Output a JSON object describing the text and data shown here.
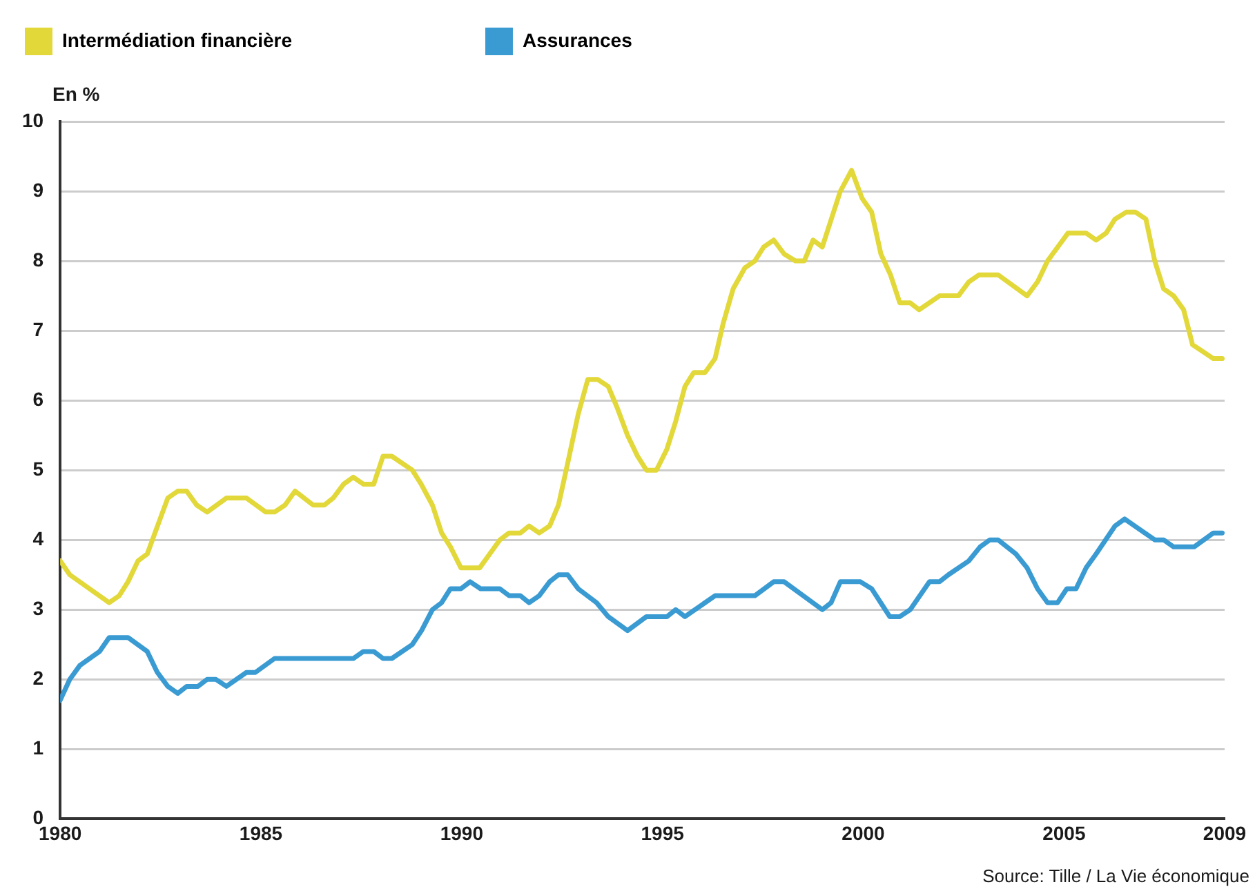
{
  "chart_data": {
    "type": "line",
    "ylabel": "En %",
    "xlim": [
      1980,
      2009
    ],
    "xticks": [
      1980,
      1985,
      1990,
      1995,
      2000,
      2005,
      2009
    ],
    "ylim": [
      0,
      10
    ],
    "yticks": [
      0,
      1,
      2,
      3,
      4,
      5,
      6,
      7,
      8,
      9,
      10
    ],
    "grid": "y",
    "legend": "top left",
    "marker": "none",
    "line_style": "solid",
    "annotations": [
      "Source: Tille / La Vie économique"
    ],
    "series": [
      {
        "name": "Intermédiation financière",
        "color": "#e2d83a",
        "x": [
          1980.0,
          1980.24,
          1981.22,
          1981.47,
          1981.69,
          1981.94,
          1982.17,
          1982.68,
          1982.93,
          1983.15,
          1983.4,
          1983.66,
          1984.14,
          1984.64,
          1985.12,
          1985.34,
          1985.6,
          1985.85,
          1986.3,
          1986.58,
          1986.8,
          1987.06,
          1987.3,
          1987.55,
          1987.81,
          1988.04,
          1988.26,
          1988.77,
          1988.99,
          1989.27,
          1989.5,
          1989.72,
          1989.98,
          1990.45,
          1990.95,
          1991.18,
          1991.46,
          1991.68,
          1991.93,
          1992.19,
          1992.41,
          1992.64,
          1992.9,
          1993.14,
          1993.39,
          1993.65,
          1993.87,
          1994.13,
          1994.38,
          1994.6,
          1994.85,
          1995.11,
          1995.33,
          1995.56,
          1995.78,
          1996.06,
          1996.31,
          1996.51,
          1996.76,
          1997.05,
          1997.3,
          1997.52,
          1997.77,
          1998.03,
          1998.31,
          1998.53,
          1998.75,
          1998.98,
          1999.43,
          1999.71,
          1999.97,
          2000.21,
          2000.44,
          2000.68,
          2000.91,
          2001.17,
          2001.39,
          2001.9,
          2002.37,
          2002.63,
          2002.88,
          2003.36,
          2004.08,
          2004.34,
          2004.59,
          2005.1,
          2005.55,
          2005.8,
          2006.05,
          2006.27,
          2006.55,
          2006.78,
          2007.04,
          2007.26,
          2007.48,
          2007.73,
          2007.98,
          2008.2,
          2008.72,
          2008.94
        ],
        "values": [
          3.7,
          3.5,
          3.1,
          3.2,
          3.4,
          3.7,
          3.8,
          4.6,
          4.7,
          4.7,
          4.5,
          4.4,
          4.6,
          4.6,
          4.4,
          4.4,
          4.5,
          4.7,
          4.5,
          4.5,
          4.6,
          4.8,
          4.9,
          4.8,
          4.8,
          5.2,
          5.2,
          5.0,
          4.8,
          4.5,
          4.1,
          3.9,
          3.6,
          3.6,
          4.0,
          4.1,
          4.1,
          4.2,
          4.1,
          4.2,
          4.5,
          5.1,
          5.8,
          6.3,
          6.3,
          6.2,
          5.9,
          5.5,
          5.2,
          5.0,
          5.0,
          5.3,
          5.7,
          6.2,
          6.4,
          6.4,
          6.6,
          7.1,
          7.6,
          7.9,
          8.0,
          8.2,
          8.3,
          8.1,
          8.0,
          8.0,
          8.3,
          8.2,
          9.0,
          9.3,
          8.9,
          8.7,
          8.1,
          7.8,
          7.4,
          7.4,
          7.3,
          7.5,
          7.5,
          7.7,
          7.8,
          7.8,
          7.5,
          7.7,
          8.0,
          8.4,
          8.4,
          8.3,
          8.4,
          8.6,
          8.7,
          8.7,
          8.6,
          8.0,
          7.6,
          7.5,
          7.3,
          6.8,
          6.6,
          6.6
        ]
      },
      {
        "name": "Assurances",
        "color": "#3a9bd3",
        "x": [
          1980.0,
          1980.24,
          1980.49,
          1980.98,
          1981.22,
          1981.69,
          1982.17,
          1982.42,
          1982.68,
          1982.93,
          1983.15,
          1983.43,
          1983.66,
          1983.88,
          1984.14,
          1984.64,
          1984.86,
          1985.34,
          1987.3,
          1987.55,
          1987.81,
          1988.04,
          1988.26,
          1988.77,
          1989.0,
          1989.27,
          1989.5,
          1989.72,
          1989.98,
          1990.21,
          1990.47,
          1990.95,
          1991.18,
          1991.46,
          1991.68,
          1991.93,
          1992.19,
          1992.41,
          1992.64,
          1992.9,
          1993.36,
          1993.65,
          1994.13,
          1994.6,
          1995.11,
          1995.33,
          1995.56,
          1996.31,
          1997.3,
          1997.77,
          1998.03,
          1998.98,
          1999.2,
          1999.43,
          1999.93,
          2000.21,
          2000.66,
          2000.91,
          2001.17,
          2001.65,
          2001.9,
          2002.12,
          2002.63,
          2002.91,
          2003.15,
          2003.36,
          2003.8,
          2004.08,
          2004.34,
          2004.59,
          2004.84,
          2005.07,
          2005.3,
          2005.55,
          2005.8,
          2006.27,
          2006.51,
          2007.26,
          2007.48,
          2007.73,
          2008.24,
          2008.72,
          2008.94
        ],
        "values": [
          1.7,
          2.0,
          2.2,
          2.4,
          2.6,
          2.6,
          2.4,
          2.1,
          1.9,
          1.8,
          1.9,
          1.9,
          2.0,
          2.0,
          1.9,
          2.1,
          2.1,
          2.3,
          2.3,
          2.4,
          2.4,
          2.3,
          2.3,
          2.5,
          2.7,
          3.0,
          3.1,
          3.3,
          3.3,
          3.4,
          3.3,
          3.3,
          3.2,
          3.2,
          3.1,
          3.2,
          3.4,
          3.5,
          3.5,
          3.3,
          3.1,
          2.9,
          2.7,
          2.9,
          2.9,
          3.0,
          2.9,
          3.2,
          3.2,
          3.4,
          3.4,
          3.0,
          3.1,
          3.4,
          3.4,
          3.3,
          2.9,
          2.9,
          3.0,
          3.4,
          3.4,
          3.5,
          3.7,
          3.9,
          4.0,
          4.0,
          3.8,
          3.6,
          3.3,
          3.1,
          3.1,
          3.3,
          3.3,
          3.6,
          3.8,
          4.2,
          4.3,
          4.0,
          4.0,
          3.9,
          3.9,
          4.1,
          4.1
        ]
      }
    ]
  }
}
